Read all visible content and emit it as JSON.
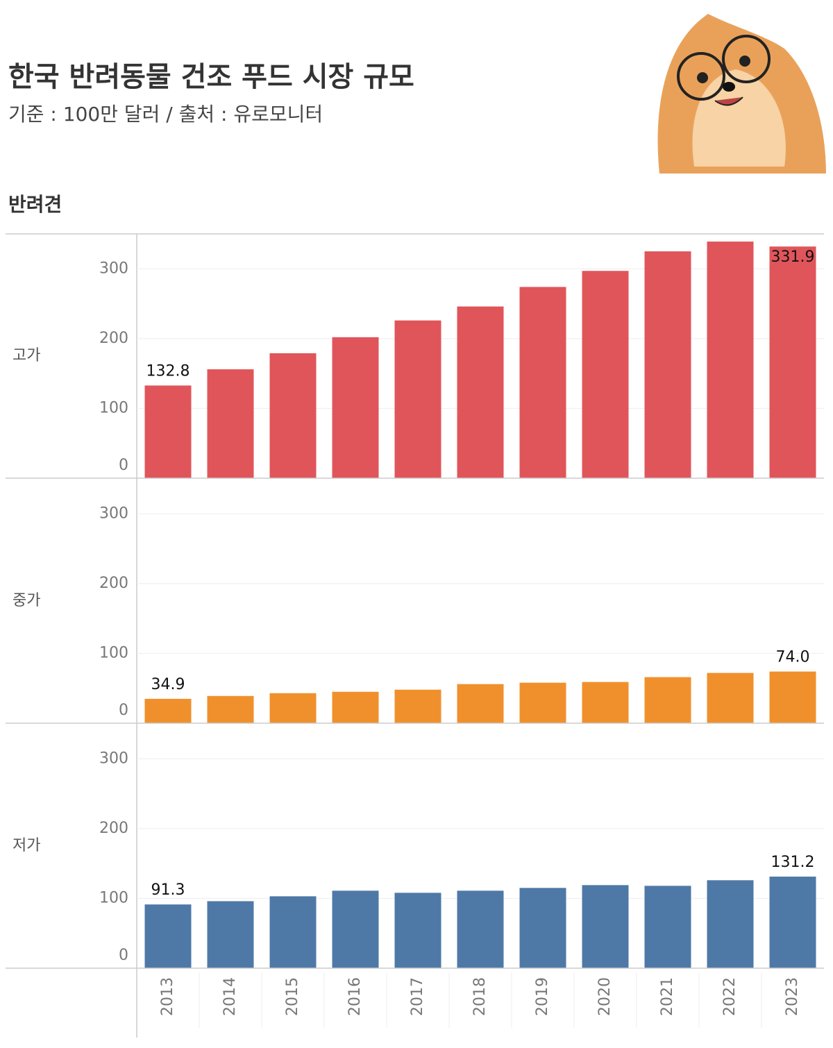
{
  "title": "한국 반려동물 건조 푸드 시장 규모",
  "subtitle": "기준 : 100만 달러 / 출처 : 유로모니터",
  "section": "반려견",
  "chart_data": [
    {
      "type": "bar",
      "row_label": "고가",
      "color": "#e0555a",
      "values": [
        132.8,
        156,
        179,
        202,
        226,
        246,
        274,
        297,
        325,
        339,
        331.9
      ],
      "value_labels": [
        "132.8",
        null,
        null,
        null,
        null,
        null,
        null,
        null,
        null,
        null,
        "331.9"
      ],
      "ylim": [
        0,
        350
      ],
      "yticks": [
        0,
        100,
        200,
        300
      ],
      "grid": true
    },
    {
      "type": "bar",
      "row_label": "중가",
      "color": "#f0902c",
      "values": [
        34.9,
        39,
        43,
        45,
        48,
        56,
        58,
        59,
        66,
        72,
        74.0
      ],
      "value_labels": [
        "34.9",
        null,
        null,
        null,
        null,
        null,
        null,
        null,
        null,
        null,
        "74.0"
      ],
      "ylim": [
        0,
        350
      ],
      "yticks": [
        0,
        100,
        200,
        300
      ],
      "grid": true
    },
    {
      "type": "bar",
      "row_label": "저가",
      "color": "#4e79a7",
      "categories": [
        "2013",
        "2014",
        "2015",
        "2016",
        "2017",
        "2018",
        "2019",
        "2020",
        "2021",
        "2022",
        "2023"
      ],
      "values": [
        91.3,
        96,
        103,
        111,
        108,
        111,
        115,
        119,
        118,
        126,
        131.2
      ],
      "value_labels": [
        "91.3",
        null,
        null,
        null,
        null,
        null,
        null,
        null,
        null,
        null,
        "131.2"
      ],
      "ylim": [
        0,
        350
      ],
      "yticks": [
        0,
        100,
        200,
        300
      ],
      "grid": true
    }
  ]
}
